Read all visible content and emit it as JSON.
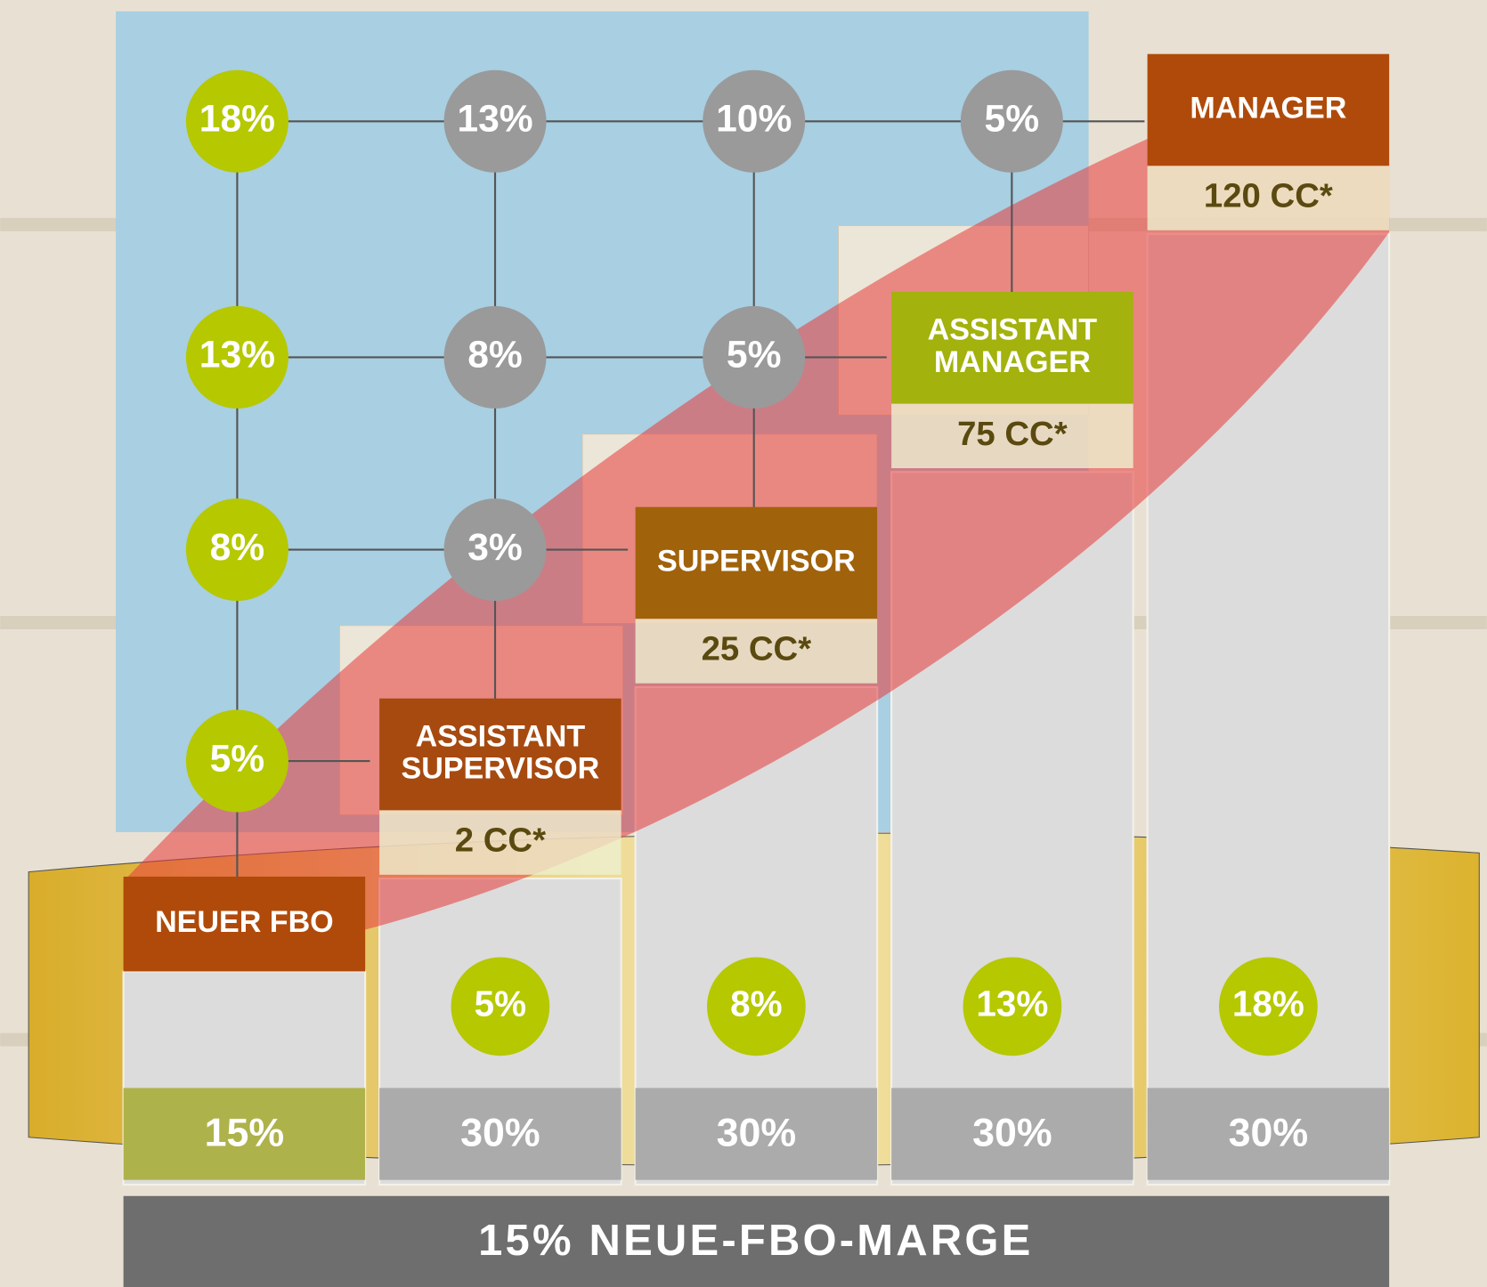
{
  "grid": {
    "rows": [
      [
        "18%",
        "13%",
        "10%",
        "5%"
      ],
      [
        "13%",
        "8%",
        "5%"
      ],
      [
        "8%",
        "3%"
      ],
      [
        "5%"
      ]
    ]
  },
  "levels": [
    {
      "name": [
        "NEUER FBO"
      ],
      "margin": "15%"
    },
    {
      "name": [
        "ASSISTANT",
        "SUPERVISOR"
      ],
      "cc": "2 CC*",
      "bonus": "5%",
      "margin": "30%"
    },
    {
      "name": [
        "SUPERVISOR"
      ],
      "cc": "25 CC*",
      "bonus": "8%",
      "margin": "30%"
    },
    {
      "name": [
        "ASSISTANT",
        "MANAGER"
      ],
      "cc": "75 CC*",
      "bonus": "13%",
      "margin": "30%"
    },
    {
      "name": [
        "MANAGER"
      ],
      "cc": "120 CC*",
      "bonus": "18%",
      "margin": "30%"
    }
  ],
  "footer": "15% NEUE-FBO-MARGE"
}
